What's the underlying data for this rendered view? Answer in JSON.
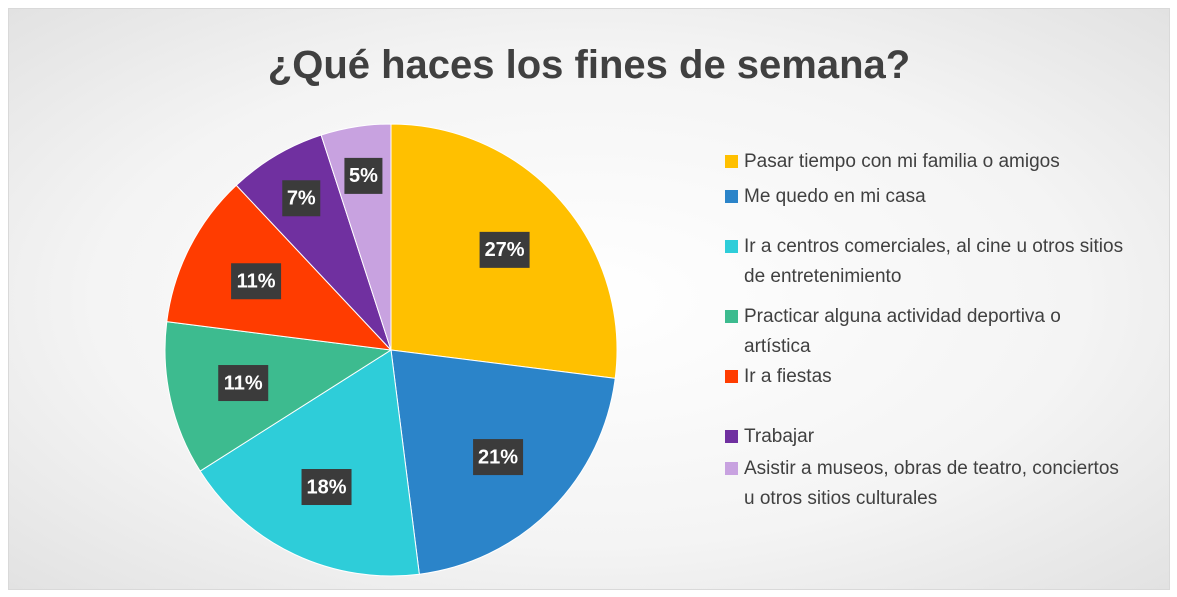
{
  "chart_data": {
    "type": "pie",
    "title": "¿Qué haces los fines de semana?",
    "categories": [
      "Pasar tiempo con mi familia o amigos",
      "Me quedo en mi casa",
      "Ir a centros comerciales, al cine u otros sitios de entretenimiento",
      "Practicar alguna actividad deportiva o artística",
      "Ir a fiestas",
      "Trabajar",
      "Asistir a museos, obras de teatro, conciertos u otros sitios culturales"
    ],
    "values": [
      27,
      21,
      18,
      11,
      11,
      7,
      5
    ],
    "value_labels": [
      "27%",
      "21%",
      "18%",
      "11%",
      "11%",
      "7%",
      "5%"
    ],
    "colors": [
      "#FFC000",
      "#2B84C9",
      "#2ECDD9",
      "#3DBB8F",
      "#FF3C00",
      "#7030A0",
      "#C8A2E0"
    ],
    "legend": "right"
  }
}
